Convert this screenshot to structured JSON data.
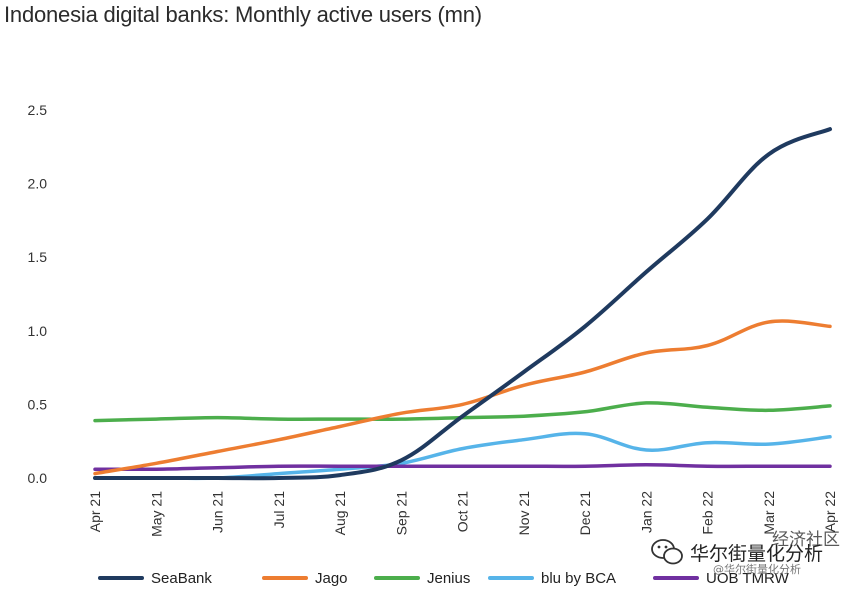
{
  "chart_data": {
    "type": "line",
    "title": "Indonesia digital banks: Monthly active users (mn)",
    "categories": [
      "Apr 21",
      "May 21",
      "Jun 21",
      "Jul 21",
      "Aug 21",
      "Sep 21",
      "Oct 21",
      "Nov 21",
      "Dec 21",
      "Jan 22",
      "Feb 22",
      "Mar 22",
      "Apr 22"
    ],
    "y_ticks": [
      "0.0",
      "0.5",
      "1.0",
      "1.5",
      "2.0",
      "2.5"
    ],
    "ylim": [
      0,
      2.5
    ],
    "grid": false,
    "legend_position": "bottom",
    "series": [
      {
        "name": "SeaBank",
        "color": "#1f3a5f",
        "values": [
          0.0,
          0.0,
          0.0,
          0.0,
          0.02,
          0.12,
          0.42,
          0.72,
          1.03,
          1.4,
          1.76,
          2.2,
          2.37
        ]
      },
      {
        "name": "Jago",
        "color": "#ed7d31",
        "values": [
          0.03,
          0.1,
          0.18,
          0.26,
          0.35,
          0.44,
          0.5,
          0.63,
          0.72,
          0.85,
          0.9,
          1.06,
          1.03
        ]
      },
      {
        "name": "Jenius",
        "color": "#4cae4c",
        "values": [
          0.39,
          0.4,
          0.41,
          0.4,
          0.4,
          0.4,
          0.41,
          0.42,
          0.45,
          0.51,
          0.48,
          0.46,
          0.49
        ]
      },
      {
        "name": "blu by BCA",
        "color": "#56b4e9",
        "values": [
          0.0,
          0.0,
          0.0,
          0.03,
          0.06,
          0.1,
          0.2,
          0.26,
          0.3,
          0.19,
          0.24,
          0.23,
          0.28
        ]
      },
      {
        "name": "UOB TMRW",
        "color": "#7030a0",
        "values": [
          0.06,
          0.06,
          0.07,
          0.08,
          0.08,
          0.08,
          0.08,
          0.08,
          0.08,
          0.09,
          0.08,
          0.08,
          0.08
        ]
      }
    ]
  },
  "watermark": {
    "main": "华尔街量化分析",
    "sub": "@华尔街量化分析",
    "corner": "经济社区",
    "icon": "wechat-icon"
  }
}
